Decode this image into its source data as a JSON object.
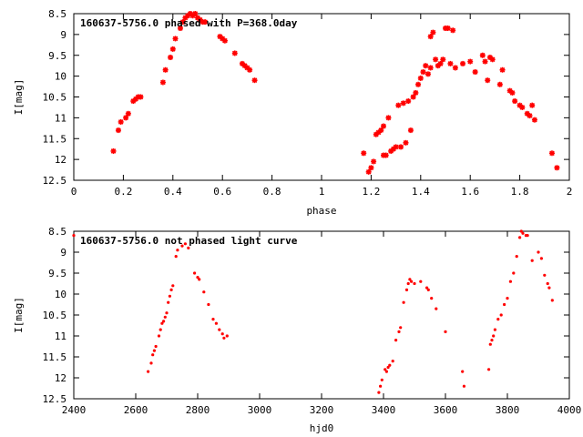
{
  "chart_data": [
    {
      "type": "scatter",
      "title": "160637-5756.0 phased with P=368.0day",
      "xlabel": "phase",
      "ylabel": "I[mag]",
      "xlim": [
        0,
        2
      ],
      "ylim": [
        12.5,
        8.5
      ],
      "x_ticks": [
        0,
        0.2,
        0.4,
        0.6,
        0.8,
        1,
        1.2,
        1.4,
        1.6,
        1.8,
        2
      ],
      "x_tick_labels": [
        "0",
        "0.2",
        "0.4",
        "0.6",
        "0.8",
        "1",
        "1.2",
        "1.4",
        "1.6",
        "1.8",
        "2"
      ],
      "y_ticks": [
        8.5,
        9,
        9.5,
        10,
        10.5,
        11,
        11.5,
        12,
        12.5
      ],
      "y_tick_labels": [
        "8.5",
        "9",
        "9.5",
        "10",
        "10.5",
        "11",
        "11.5",
        "12",
        "12.5"
      ],
      "marker": "star",
      "color": "#ff0000",
      "x": [
        0.16,
        0.18,
        0.19,
        0.21,
        0.22,
        0.24,
        0.25,
        0.26,
        0.27,
        0.36,
        0.37,
        0.39,
        0.4,
        0.41,
        0.43,
        0.44,
        0.45,
        0.46,
        0.47,
        0.48,
        0.49,
        0.5,
        0.51,
        0.52,
        0.53,
        0.59,
        0.6,
        0.61,
        0.65,
        0.68,
        0.69,
        0.7,
        0.71,
        0.73,
        1.17,
        1.19,
        1.2,
        1.21,
        1.22,
        1.23,
        1.24,
        1.25,
        1.25,
        1.26,
        1.27,
        1.28,
        1.29,
        1.3,
        1.31,
        1.32,
        1.33,
        1.34,
        1.35,
        1.36,
        1.37,
        1.38,
        1.39,
        1.4,
        1.41,
        1.42,
        1.43,
        1.44,
        1.44,
        1.45,
        1.46,
        1.47,
        1.48,
        1.49,
        1.5,
        1.51,
        1.52,
        1.53,
        1.54,
        1.57,
        1.6,
        1.62,
        1.65,
        1.66,
        1.67,
        1.68,
        1.69,
        1.72,
        1.73,
        1.76,
        1.77,
        1.78,
        1.8,
        1.81,
        1.83,
        1.84,
        1.85,
        1.86,
        1.93,
        1.95
      ],
      "y": [
        11.8,
        11.3,
        11.1,
        11.0,
        10.9,
        10.6,
        10.55,
        10.5,
        10.5,
        10.15,
        9.85,
        9.55,
        9.35,
        9.1,
        8.85,
        8.7,
        8.6,
        8.55,
        8.5,
        8.55,
        8.5,
        8.6,
        8.65,
        8.7,
        8.7,
        9.05,
        9.1,
        9.15,
        9.45,
        9.7,
        9.75,
        9.8,
        9.85,
        10.1,
        11.85,
        12.3,
        12.2,
        12.05,
        11.4,
        11.35,
        11.3,
        11.9,
        11.2,
        11.9,
        11.0,
        11.8,
        11.75,
        11.7,
        10.7,
        11.7,
        10.65,
        11.6,
        10.6,
        11.3,
        10.5,
        10.4,
        10.2,
        10.05,
        9.9,
        9.75,
        9.95,
        9.05,
        9.8,
        8.95,
        9.6,
        9.75,
        9.7,
        9.6,
        8.85,
        8.85,
        9.7,
        8.9,
        9.8,
        9.7,
        9.65,
        9.9,
        9.5,
        9.65,
        10.1,
        9.55,
        9.6,
        10.2,
        9.85,
        10.35,
        10.4,
        10.6,
        10.7,
        10.75,
        10.9,
        10.95,
        10.7,
        11.05,
        11.85,
        12.2
      ]
    },
    {
      "type": "scatter",
      "title": "160637-5756.0 not phased light curve",
      "xlabel": "hjd0",
      "ylabel": "I[mag]",
      "xlim": [
        2400,
        4000
      ],
      "ylim": [
        12.5,
        8.5
      ],
      "x_ticks": [
        2400,
        2600,
        2800,
        3000,
        3200,
        3400,
        3600,
        3800,
        4000
      ],
      "x_tick_labels": [
        "2400",
        "2600",
        "2800",
        "3000",
        "3200",
        "3400",
        "3600",
        "3800",
        "4000"
      ],
      "y_ticks": [
        8.5,
        9,
        9.5,
        10,
        10.5,
        11,
        11.5,
        12,
        12.5
      ],
      "y_tick_labels": [
        "8.5",
        "9",
        "9.5",
        "10",
        "10.5",
        "11",
        "11.5",
        "12",
        "12.5"
      ],
      "marker": "dot",
      "color": "#ff0000",
      "x": [
        2400,
        2640,
        2650,
        2655,
        2660,
        2665,
        2675,
        2680,
        2685,
        2690,
        2695,
        2700,
        2705,
        2710,
        2715,
        2720,
        2730,
        2735,
        2750,
        2760,
        2770,
        2790,
        2800,
        2805,
        2820,
        2835,
        2850,
        2860,
        2870,
        2880,
        2885,
        2895,
        3385,
        3390,
        3395,
        3405,
        3410,
        3415,
        3420,
        3430,
        3440,
        3450,
        3455,
        3465,
        3475,
        3480,
        3485,
        3490,
        3500,
        3520,
        3540,
        3545,
        3555,
        3570,
        3600,
        3655,
        3660,
        3740,
        3745,
        3750,
        3755,
        3760,
        3770,
        3780,
        3790,
        3800,
        3810,
        3820,
        3830,
        3840,
        3845,
        3850,
        3860,
        3865,
        3880,
        3900,
        3910,
        3920,
        3930,
        3935,
        3945
      ],
      "y": [
        8.6,
        11.85,
        11.65,
        11.45,
        11.35,
        11.25,
        11.0,
        10.85,
        10.7,
        10.65,
        10.55,
        10.45,
        10.2,
        10.05,
        9.9,
        9.8,
        9.1,
        8.95,
        8.85,
        8.8,
        8.9,
        9.5,
        9.6,
        9.65,
        9.95,
        10.25,
        10.6,
        10.7,
        10.85,
        10.95,
        11.05,
        11.0,
        12.35,
        12.2,
        12.05,
        11.8,
        11.85,
        11.75,
        11.7,
        11.6,
        11.1,
        10.9,
        10.8,
        10.2,
        9.9,
        9.75,
        9.65,
        9.7,
        9.75,
        9.7,
        9.85,
        9.9,
        10.1,
        10.35,
        10.9,
        11.85,
        12.2,
        11.8,
        11.2,
        11.1,
        11.0,
        10.85,
        10.6,
        10.5,
        10.25,
        10.1,
        9.7,
        9.5,
        9.1,
        8.65,
        8.5,
        8.55,
        8.6,
        8.6,
        9.2,
        9.0,
        9.15,
        9.55,
        9.75,
        9.85,
        10.15
      ]
    }
  ]
}
